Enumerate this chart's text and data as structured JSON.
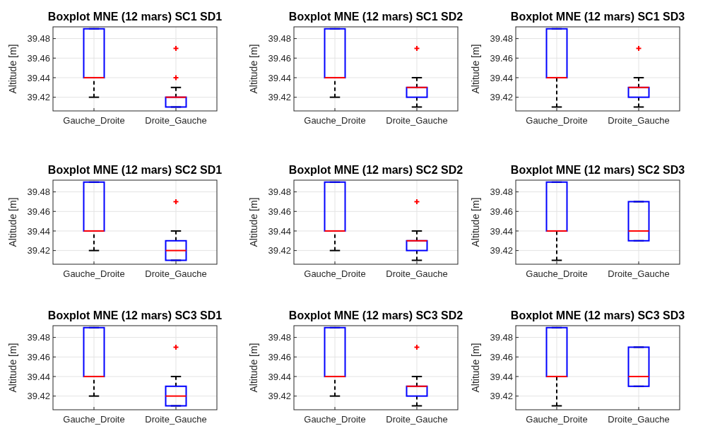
{
  "chart_data": [
    {
      "type": "box",
      "title": "Boxplot MNE (12 mars) SC1 SD1",
      "ylabel": "Altitude [m]",
      "categories": [
        "Gauche_Droite",
        "Droite_Gauche"
      ],
      "ylim": [
        39.406,
        39.492
      ],
      "yticks": [
        39.42,
        39.44,
        39.46,
        39.48
      ],
      "grid": true,
      "marker": "cross",
      "series": [
        {
          "color": "#0000ff",
          "boxes": [
            {
              "low": 39.42,
              "q1": 39.44,
              "median": 39.44,
              "q3": 39.49,
              "high": 39.49
            },
            {
              "low": 39.41,
              "q1": 39.41,
              "median": 39.42,
              "q3": 39.42,
              "high": 39.43,
              "outliers": [
                39.44,
                39.47
              ]
            }
          ]
        }
      ]
    },
    {
      "type": "box",
      "title": "Boxplot MNE (12 mars) SC1 SD2",
      "ylabel": "Altitude [m]",
      "categories": [
        "Gauche_Droite",
        "Droite_Gauche"
      ],
      "ylim": [
        39.406,
        39.492
      ],
      "yticks": [
        39.42,
        39.44,
        39.46,
        39.48
      ],
      "grid": true,
      "marker": "cross",
      "series": [
        {
          "color": "#0000ff",
          "boxes": [
            {
              "low": 39.42,
              "q1": 39.44,
              "median": 39.44,
              "q3": 39.49,
              "high": 39.49
            },
            {
              "low": 39.41,
              "q1": 39.42,
              "median": 39.43,
              "q3": 39.43,
              "high": 39.44,
              "outliers": [
                39.47
              ]
            }
          ]
        }
      ]
    },
    {
      "type": "box",
      "title": "Boxplot MNE (12 mars) SC1 SD3",
      "ylabel": "Altitude [m]",
      "categories": [
        "Gauche_Droite",
        "Droite_Gauche"
      ],
      "ylim": [
        39.406,
        39.492
      ],
      "yticks": [
        39.42,
        39.44,
        39.46,
        39.48
      ],
      "grid": true,
      "marker": "cross",
      "series": [
        {
          "color": "#0000ff",
          "boxes": [
            {
              "low": 39.41,
              "q1": 39.44,
              "median": 39.44,
              "q3": 39.49,
              "high": 39.49
            },
            {
              "low": 39.41,
              "q1": 39.42,
              "median": 39.43,
              "q3": 39.43,
              "high": 39.44,
              "outliers": [
                39.47
              ]
            }
          ]
        }
      ]
    },
    {
      "type": "box",
      "title": "Boxplot MNE (12 mars) SC2 SD1",
      "ylabel": "Altitude [m]",
      "categories": [
        "Gauche_Droite",
        "Droite_Gauche"
      ],
      "ylim": [
        39.406,
        39.492
      ],
      "yticks": [
        39.42,
        39.44,
        39.46,
        39.48
      ],
      "grid": true,
      "marker": "cross",
      "series": [
        {
          "color": "#0000ff",
          "boxes": [
            {
              "low": 39.42,
              "q1": 39.44,
              "median": 39.44,
              "q3": 39.49,
              "high": 39.49
            },
            {
              "low": 39.41,
              "q1": 39.41,
              "median": 39.42,
              "q3": 39.43,
              "high": 39.44,
              "outliers": [
                39.47
              ]
            }
          ]
        }
      ]
    },
    {
      "type": "box",
      "title": "Boxplot MNE (12 mars) SC2 SD2",
      "ylabel": "Altitude [m]",
      "categories": [
        "Gauche_Droite",
        "Droite_Gauche"
      ],
      "ylim": [
        39.406,
        39.492
      ],
      "yticks": [
        39.42,
        39.44,
        39.46,
        39.48
      ],
      "grid": true,
      "marker": "cross",
      "series": [
        {
          "color": "#0000ff",
          "boxes": [
            {
              "low": 39.42,
              "q1": 39.44,
              "median": 39.44,
              "q3": 39.49,
              "high": 39.49
            },
            {
              "low": 39.41,
              "q1": 39.42,
              "median": 39.43,
              "q3": 39.43,
              "high": 39.44,
              "outliers": [
                39.47
              ]
            }
          ]
        }
      ]
    },
    {
      "type": "box",
      "title": "Boxplot MNE (12 mars) SC2 SD3",
      "ylabel": "Altitude [m]",
      "categories": [
        "Gauche_Droite",
        "Droite_Gauche"
      ],
      "ylim": [
        39.406,
        39.492
      ],
      "yticks": [
        39.42,
        39.44,
        39.46,
        39.48
      ],
      "grid": true,
      "series": [
        {
          "color": "#0000ff",
          "boxes": [
            {
              "low": 39.41,
              "q1": 39.44,
              "median": 39.44,
              "q3": 39.49,
              "high": 39.49
            },
            {
              "low": 39.43,
              "q1": 39.43,
              "median": 39.44,
              "q3": 39.47,
              "high": 39.47
            }
          ]
        }
      ]
    },
    {
      "type": "box",
      "title": "Boxplot MNE (12 mars) SC3 SD1",
      "ylabel": "Altitude [m]",
      "categories": [
        "Gauche_Droite",
        "Droite_Gauche"
      ],
      "ylim": [
        39.406,
        39.492
      ],
      "yticks": [
        39.42,
        39.44,
        39.46,
        39.48
      ],
      "grid": true,
      "marker": "cross",
      "series": [
        {
          "color": "#0000ff",
          "boxes": [
            {
              "low": 39.42,
              "q1": 39.44,
              "median": 39.44,
              "q3": 39.49,
              "high": 39.49
            },
            {
              "low": 39.41,
              "q1": 39.41,
              "median": 39.42,
              "q3": 39.43,
              "high": 39.44,
              "outliers": [
                39.47
              ]
            }
          ]
        }
      ]
    },
    {
      "type": "box",
      "title": "Boxplot MNE (12 mars) SC3 SD2",
      "ylabel": "Altitude [m]",
      "categories": [
        "Gauche_Droite",
        "Droite_Gauche"
      ],
      "ylim": [
        39.406,
        39.492
      ],
      "yticks": [
        39.42,
        39.44,
        39.46,
        39.48
      ],
      "grid": true,
      "marker": "cross",
      "series": [
        {
          "color": "#0000ff",
          "boxes": [
            {
              "low": 39.42,
              "q1": 39.44,
              "median": 39.44,
              "q3": 39.49,
              "high": 39.49
            },
            {
              "low": 39.41,
              "q1": 39.42,
              "median": 39.43,
              "q3": 39.43,
              "high": 39.44,
              "outliers": [
                39.47
              ]
            }
          ]
        }
      ]
    },
    {
      "type": "box",
      "title": "Boxplot MNE (12 mars) SC3 SD3",
      "ylabel": "Altitude [m]",
      "categories": [
        "Gauche_Droite",
        "Droite_Gauche"
      ],
      "ylim": [
        39.406,
        39.492
      ],
      "yticks": [
        39.42,
        39.44,
        39.46,
        39.48
      ],
      "grid": true,
      "series": [
        {
          "color": "#0000ff",
          "boxes": [
            {
              "low": 39.41,
              "q1": 39.44,
              "median": 39.44,
              "q3": 39.49,
              "high": 39.49
            },
            {
              "low": 39.43,
              "q1": 39.43,
              "median": 39.44,
              "q3": 39.47,
              "high": 39.47
            }
          ]
        }
      ]
    }
  ]
}
